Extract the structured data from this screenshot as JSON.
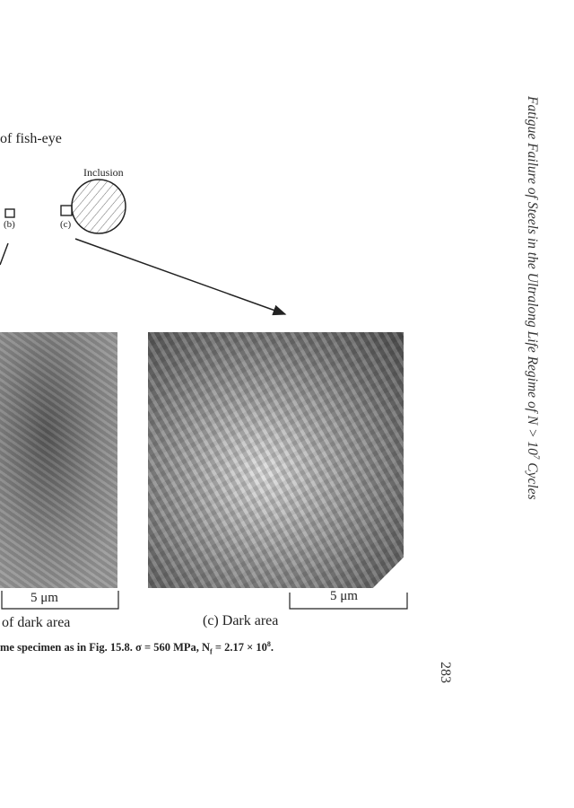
{
  "running_header": "Fatigue Failure of Steels in the Ultralong Life Regime of N > 10",
  "running_header_sup": "7",
  "running_header_end": " Cycles",
  "page_number": "283",
  "diagram": {
    "partial_label": "of fish-eye",
    "inclusion_label": "Inclusion",
    "marker_b": "(b)",
    "marker_c": "(c)"
  },
  "panels": [
    {
      "scale_bar": "5 μm",
      "caption": "of dark area"
    },
    {
      "scale_bar": "5 μm",
      "caption": "(c) Dark area"
    }
  ],
  "figure_caption": "me specimen as in Fig. 15.8. σ = 560 MPa, N",
  "figure_caption_sub": "f",
  "figure_caption_end": " = 2.17 × 10",
  "figure_caption_sup": "8",
  "figure_caption_tail": "."
}
